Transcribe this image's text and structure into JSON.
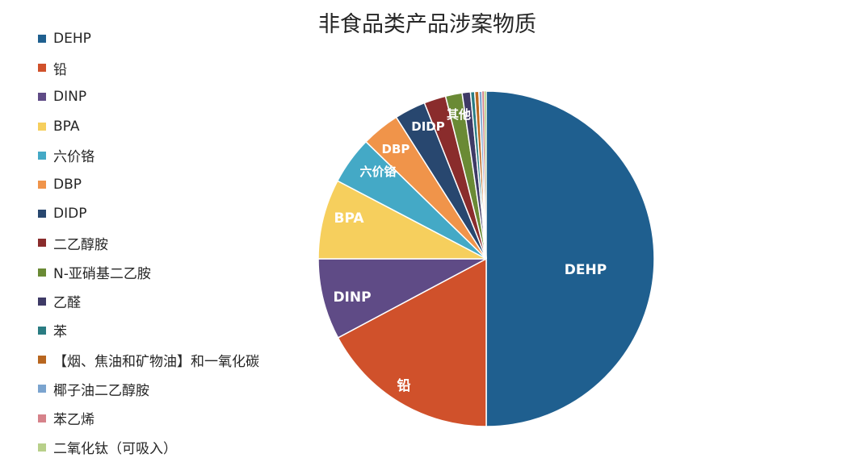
{
  "chart_data": {
    "type": "pie",
    "title": "非食品类产品涉案物质",
    "legend_position": "left",
    "start_angle_deg": 0,
    "direction": "clockwise",
    "slices": [
      {
        "label": "DEHP",
        "value": 50.0,
        "color": "#1f5f8f",
        "show_label": true
      },
      {
        "label": "铅",
        "value": 17.2,
        "color": "#d0512b",
        "show_label": true
      },
      {
        "label": "DINP",
        "value": 7.8,
        "color": "#5f4b86",
        "show_label": true
      },
      {
        "label": "BPA",
        "value": 7.7,
        "color": "#f6cf5d",
        "show_label": true
      },
      {
        "label": "六价铬",
        "value": 4.6,
        "color": "#44a9c6",
        "show_label": true
      },
      {
        "label": "DBP",
        "value": 3.7,
        "color": "#f0944a",
        "show_label": true
      },
      {
        "label": "DIDP",
        "value": 3.0,
        "color": "#28476f",
        "show_label": true
      },
      {
        "label": "二乙醇胺",
        "value": 2.1,
        "color": "#8a2c2c",
        "show_label": false
      },
      {
        "label": "N-亚硝基二乙胺",
        "value": 1.6,
        "color": "#6a8a35",
        "show_label": false
      },
      {
        "label": "乙醛",
        "value": 0.8,
        "color": "#3e3a66",
        "show_label": false
      },
      {
        "label": "苯",
        "value": 0.4,
        "color": "#2a7c82",
        "show_label": false
      },
      {
        "label": "【烟、焦油和矿物油】和一氧化碳",
        "value": 0.4,
        "color": "#b8661f",
        "show_label": false
      },
      {
        "label": "椰子油二乙醇胺",
        "value": 0.3,
        "color": "#7ba4cf",
        "show_label": false
      },
      {
        "label": "苯乙烯",
        "value": 0.2,
        "color": "#d6828a",
        "show_label": false
      },
      {
        "label": "二氧化钛（可吸入）",
        "value": 0.2,
        "color": "#b8d08a",
        "show_label": false
      }
    ],
    "annotations": [
      {
        "text": "其他",
        "refers_to": "small slices after DIDP"
      }
    ]
  },
  "legend": {
    "items": [
      {
        "label": "DEHP",
        "color": "#1f5f8f"
      },
      {
        "label": "铅",
        "color": "#d0512b"
      },
      {
        "label": "DINP",
        "color": "#5f4b86"
      },
      {
        "label": "BPA",
        "color": "#f6cf5d"
      },
      {
        "label": "六价铬",
        "color": "#44a9c6"
      },
      {
        "label": "DBP",
        "color": "#f0944a"
      },
      {
        "label": "DIDP",
        "color": "#28476f"
      },
      {
        "label": "二乙醇胺",
        "color": "#8a2c2c"
      },
      {
        "label": "N-亚硝基二乙胺",
        "color": "#6a8a35"
      },
      {
        "label": "乙醛",
        "color": "#3e3a66"
      },
      {
        "label": "苯",
        "color": "#2a7c82"
      },
      {
        "label": "【烟、焦油和矿物油】和一氧化碳",
        "color": "#b8661f"
      },
      {
        "label": "椰子油二乙醇胺",
        "color": "#7ba4cf"
      },
      {
        "label": "苯乙烯",
        "color": "#d6828a"
      },
      {
        "label": "二氧化钛（可吸入）",
        "color": "#b8d08a"
      }
    ]
  },
  "other_label": "其他"
}
